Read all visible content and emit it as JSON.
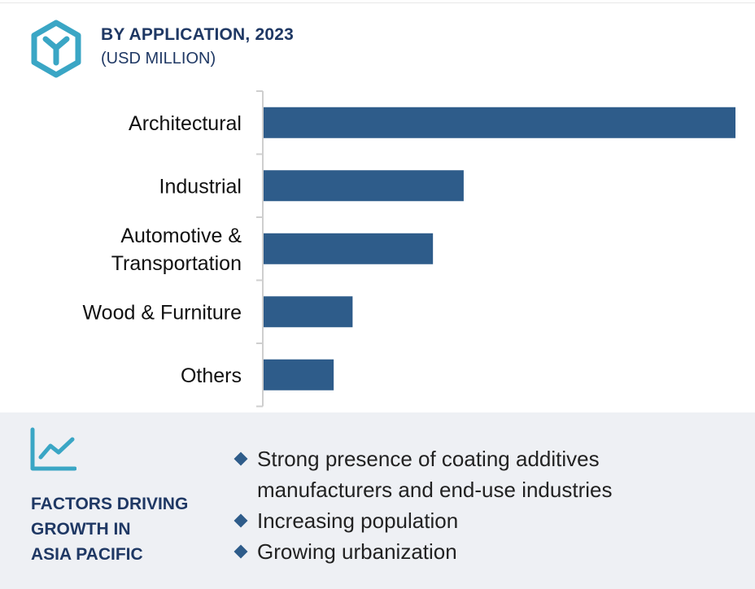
{
  "header": {
    "title": "BY APPLICATION, 2023",
    "subtitle": "(USD MILLION)",
    "icon": "hexagon-y-icon",
    "icon_color": "#3aa6c5"
  },
  "chart_data": {
    "type": "bar",
    "orientation": "horizontal",
    "title": "BY APPLICATION, 2023",
    "subtitle": "(USD MILLION)",
    "categories": [
      [
        "Architectural"
      ],
      [
        "Industrial"
      ],
      [
        "Automotive &",
        "Transportation"
      ],
      [
        "Wood & Furniture"
      ],
      [
        "Others"
      ]
    ],
    "values": [
      100,
      42.5,
      36,
      19,
      15
    ],
    "xlim": [
      0,
      100
    ],
    "grid": false,
    "legend": false,
    "bar_color": "#2e5c8a"
  },
  "factors": {
    "icon": "trend-chart-icon",
    "title_lines": [
      "FACTORS DRIVING",
      "GROWTH IN",
      "ASIA PACIFIC"
    ],
    "bullets": [
      [
        "Strong presence of coating additives",
        "manufacturers and end-use industries"
      ],
      [
        "Increasing population"
      ],
      [
        "Growing urbanization"
      ]
    ],
    "bullet_color": "#2e5c8a"
  }
}
